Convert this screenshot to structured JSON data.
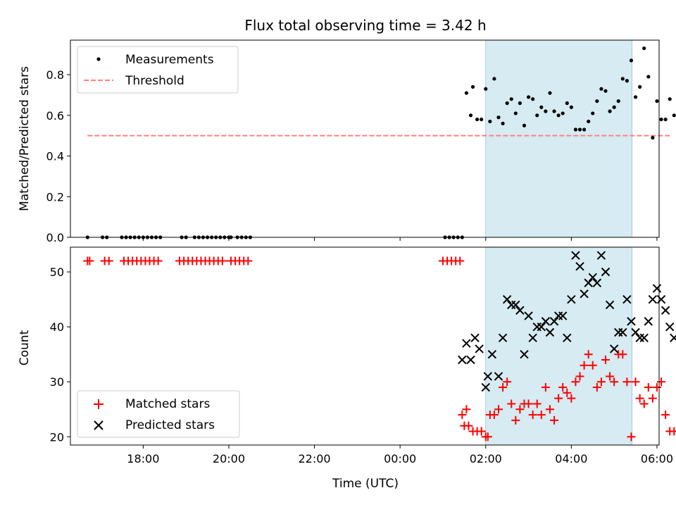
{
  "chart_data": {
    "title": "Flux total observing time = 3.42 h",
    "xlabel": "Time (UTC)",
    "xlim": [
      16.3,
      30.05
    ],
    "xticks": [
      {
        "value": 18,
        "label": "18:00"
      },
      {
        "value": 20,
        "label": "20:00"
      },
      {
        "value": 22,
        "label": "22:00"
      },
      {
        "value": 24,
        "label": "00:00"
      },
      {
        "value": 26,
        "label": "02:00"
      },
      {
        "value": 28,
        "label": "04:00"
      },
      {
        "value": 30,
        "label": "06:00"
      }
    ],
    "shaded_interval": [
      26.0,
      29.42
    ],
    "panels": [
      {
        "type": "scatter",
        "ylabel": "Matched/Predicted stars",
        "ylim": [
          0,
          0.97
        ],
        "yticks": [
          {
            "value": 0.0,
            "label": "0.0"
          },
          {
            "value": 0.2,
            "label": "0.2"
          },
          {
            "value": 0.4,
            "label": "0.4"
          },
          {
            "value": 0.6,
            "label": "0.6"
          },
          {
            "value": 0.8,
            "label": "0.8"
          }
        ],
        "threshold": {
          "name": "Threshold",
          "value": 0.5,
          "x_range": [
            16.7,
            30.3
          ],
          "color": "#ff7f7f"
        },
        "series": [
          {
            "name": "Measurements",
            "color": "#000000",
            "marker": "dot",
            "x": [
              16.7,
              17.05,
              17.15,
              17.5,
              17.6,
              17.7,
              17.8,
              17.9,
              18.0,
              18.1,
              18.2,
              18.3,
              18.4,
              18.9,
              19.0,
              19.2,
              19.3,
              19.4,
              19.5,
              19.6,
              19.7,
              19.8,
              19.9,
              20.0,
              20.05,
              20.2,
              20.3,
              20.4,
              20.5,
              25.05,
              25.15,
              25.25,
              25.35,
              25.45,
              25.55,
              25.65,
              25.7,
              25.8,
              25.9,
              26.0,
              26.1,
              26.2,
              26.3,
              26.4,
              26.5,
              26.6,
              26.7,
              26.8,
              26.9,
              27.0,
              27.1,
              27.2,
              27.3,
              27.4,
              27.5,
              27.6,
              27.7,
              27.8,
              27.9,
              28.0,
              28.1,
              28.2,
              28.3,
              28.4,
              28.5,
              28.6,
              28.7,
              28.8,
              28.9,
              29.0,
              29.1,
              29.2,
              29.3,
              29.4,
              29.5,
              29.6,
              29.7,
              29.8,
              29.9,
              30.0,
              30.1,
              30.2,
              30.3,
              30.4
            ],
            "y": [
              0,
              0,
              0,
              0,
              0,
              0,
              0,
              0,
              0,
              0,
              0,
              0,
              0,
              0,
              0,
              0,
              0,
              0,
              0,
              0,
              0,
              0,
              0,
              0,
              0,
              0,
              0,
              0,
              0,
              0,
              0,
              0,
              0,
              0,
              0.71,
              0.6,
              0.74,
              0.58,
              0.58,
              0.73,
              0.57,
              0.78,
              0.59,
              0.56,
              0.66,
              0.68,
              0.61,
              0.66,
              0.55,
              0.69,
              0.68,
              0.6,
              0.64,
              0.62,
              0.71,
              0.62,
              0.6,
              0.61,
              0.66,
              0.64,
              0.53,
              0.53,
              0.53,
              0.57,
              0.61,
              0.67,
              0.73,
              0.72,
              0.62,
              0.64,
              0.67,
              0.78,
              0.77,
              0.87,
              0.69,
              0.74,
              0.93,
              0.79,
              0.49,
              0.67,
              0.58,
              0.58,
              0.68,
              0.6
            ]
          }
        ]
      },
      {
        "type": "scatter",
        "ylabel": "Count",
        "ylim": [
          18.5,
          54.5
        ],
        "yticks": [
          {
            "value": 20,
            "label": "20"
          },
          {
            "value": 30,
            "label": "30"
          },
          {
            "value": 40,
            "label": "40"
          },
          {
            "value": 50,
            "label": "50"
          }
        ],
        "series": [
          {
            "name": "Matched stars",
            "color": "#ff0000",
            "marker": "plus",
            "x": [
              16.7,
              16.75,
              17.1,
              17.2,
              17.55,
              17.65,
              17.75,
              17.85,
              17.95,
              18.05,
              18.15,
              18.25,
              18.35,
              18.85,
              18.95,
              19.05,
              19.15,
              19.25,
              19.35,
              19.45,
              19.55,
              19.65,
              19.75,
              19.85,
              20.05,
              20.15,
              20.25,
              20.35,
              20.45,
              25.0,
              25.1,
              25.2,
              25.3,
              25.4,
              25.45,
              25.5,
              25.55,
              25.6,
              25.7,
              25.8,
              25.9,
              26.0,
              26.05,
              26.1,
              26.2,
              26.3,
              26.4,
              26.5,
              26.6,
              26.7,
              26.8,
              26.9,
              27.0,
              27.1,
              27.2,
              27.3,
              27.4,
              27.5,
              27.6,
              27.7,
              27.8,
              27.9,
              28.0,
              28.1,
              28.2,
              28.3,
              28.4,
              28.5,
              28.6,
              28.7,
              28.8,
              28.9,
              29.0,
              29.1,
              29.2,
              29.3,
              29.4,
              29.5,
              29.6,
              29.7,
              29.8,
              29.9,
              30.0,
              30.1,
              30.2,
              30.3,
              30.4
            ],
            "y": [
              52,
              52,
              52,
              52,
              52,
              52,
              52,
              52,
              52,
              52,
              52,
              52,
              52,
              52,
              52,
              52,
              52,
              52,
              52,
              52,
              52,
              52,
              52,
              52,
              52,
              52,
              52,
              52,
              52,
              52,
              52,
              52,
              52,
              52,
              24,
              22,
              25,
              22,
              21,
              21,
              21,
              20,
              20,
              24,
              24,
              25,
              29,
              30,
              26,
              23,
              25,
              26,
              26,
              24,
              26,
              24,
              29,
              25,
              23,
              27,
              29,
              28,
              27,
              30,
              31,
              33,
              35,
              33,
              29,
              30,
              34,
              31,
              30,
              35,
              35,
              30,
              20,
              30,
              27,
              26,
              29,
              27,
              29,
              30,
              24,
              21,
              21
            ]
          },
          {
            "name": "Predicted stars",
            "color": "#000000",
            "marker": "x",
            "x": [
              25.45,
              25.55,
              25.65,
              25.75,
              25.85,
              26.0,
              26.05,
              26.15,
              26.3,
              26.4,
              26.5,
              26.6,
              26.7,
              26.8,
              26.9,
              27.0,
              27.1,
              27.2,
              27.3,
              27.4,
              27.5,
              27.6,
              27.7,
              27.8,
              27.9,
              28.0,
              28.1,
              28.2,
              28.3,
              28.4,
              28.5,
              28.6,
              28.7,
              28.8,
              28.9,
              29.0,
              29.1,
              29.2,
              29.3,
              29.4,
              29.5,
              29.6,
              29.7,
              29.8,
              29.9,
              30.0,
              30.1,
              30.2,
              30.3,
              30.4
            ],
            "y": [
              34,
              37,
              34,
              38,
              36,
              29,
              31,
              35,
              31,
              38,
              45,
              44,
              44,
              43,
              35,
              42,
              38,
              40,
              40,
              41,
              39,
              41,
              42,
              42,
              38,
              45,
              53,
              51,
              46,
              48,
              49,
              48,
              53,
              50,
              44,
              36,
              39,
              39,
              45,
              41,
              39,
              38,
              38,
              41,
              45,
              47,
              45,
              43,
              40,
              38
            ]
          }
        ]
      }
    ]
  }
}
